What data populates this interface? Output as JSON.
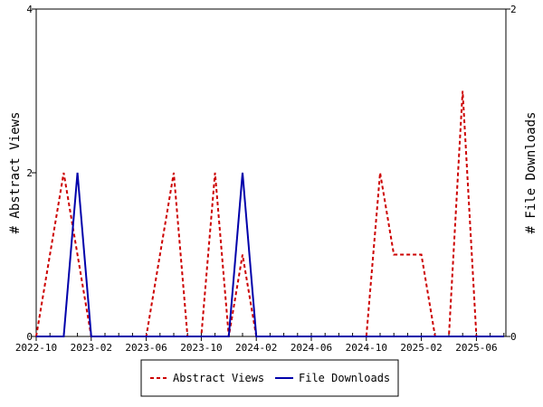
{
  "chart_data": {
    "type": "line",
    "title": "",
    "xlabel": "",
    "ylabel": "# Abstract Views",
    "y2label": "# File Downloads",
    "x_tick_labels": [
      "2022-10",
      "2023-02",
      "2023-06",
      "2023-10",
      "2024-02",
      "2024-06",
      "2024-10",
      "2025-02",
      "2025-06"
    ],
    "x_months": [
      "2022-10",
      "2022-11",
      "2022-12",
      "2023-01",
      "2023-02",
      "2023-03",
      "2023-04",
      "2023-05",
      "2023-06",
      "2023-07",
      "2023-08",
      "2023-09",
      "2023-10",
      "2023-11",
      "2023-12",
      "2024-01",
      "2024-02",
      "2024-03",
      "2024-04",
      "2024-05",
      "2024-06",
      "2024-07",
      "2024-08",
      "2024-09",
      "2024-10",
      "2024-11",
      "2024-12",
      "2025-01",
      "2025-02",
      "2025-03",
      "2025-04",
      "2025-05",
      "2025-06",
      "2025-07",
      "2025-08"
    ],
    "ylim": [
      0,
      4
    ],
    "y_ticks": [
      0,
      2,
      4
    ],
    "y2lim": [
      0,
      2
    ],
    "y2_ticks": [
      0,
      2
    ],
    "grid": false,
    "legend_position": "bottom",
    "series": [
      {
        "name": "Abstract Views",
        "axis": "left",
        "color": "#cc0000",
        "dash": true,
        "values": [
          0,
          1,
          2,
          1,
          0,
          0,
          0,
          0,
          0,
          1,
          2,
          0,
          0,
          2,
          0,
          1,
          0,
          0,
          0,
          0,
          0,
          0,
          0,
          0,
          0,
          2,
          1,
          1,
          1,
          0,
          0,
          3,
          0,
          0,
          0
        ]
      },
      {
        "name": "File Downloads",
        "axis": "right",
        "color": "#0000aa",
        "dash": false,
        "values": [
          0,
          0,
          0,
          1,
          0,
          0,
          0,
          0,
          0,
          0,
          0,
          0,
          0,
          0,
          0,
          1,
          0,
          0,
          0,
          0,
          0,
          0,
          0,
          0,
          0,
          0,
          0,
          0,
          0,
          0,
          0,
          0,
          0,
          0,
          0
        ]
      }
    ]
  }
}
